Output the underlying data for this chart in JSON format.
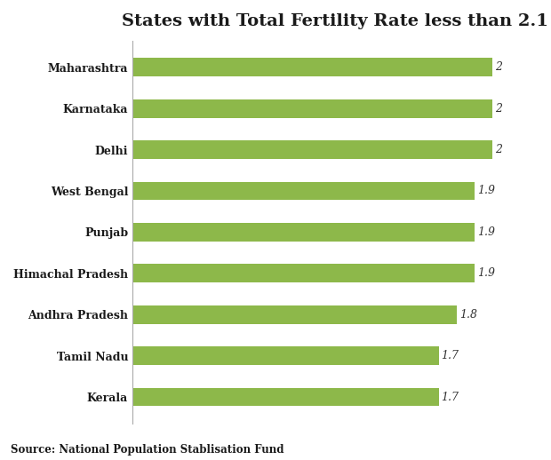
{
  "title": "States with Total Fertility Rate less than 2.1",
  "categories": [
    "Kerala",
    "Tamil Nadu",
    "Andhra Pradesh",
    "Himachal Pradesh",
    "Punjab",
    "West Bengal",
    "Delhi",
    "Karnataka",
    "Maharashtra"
  ],
  "values": [
    1.7,
    1.7,
    1.8,
    1.9,
    1.9,
    1.9,
    2.0,
    2.0,
    2.0
  ],
  "value_labels": [
    "1.7",
    "1.7",
    "1.8",
    "1.9",
    "1.9",
    "1.9",
    "2",
    "2",
    "2"
  ],
  "bar_color": "#8db84a",
  "label_color": "#1a1a1a",
  "value_color": "#333333",
  "background_color": "#ffffff",
  "source_text": "Source: National Population Stablisation Fund",
  "xlim": [
    0,
    2.25
  ],
  "title_fontsize": 14,
  "label_fontsize": 9,
  "value_fontsize": 9,
  "bar_height": 0.45,
  "left_spine_color": "#aaaaaa"
}
